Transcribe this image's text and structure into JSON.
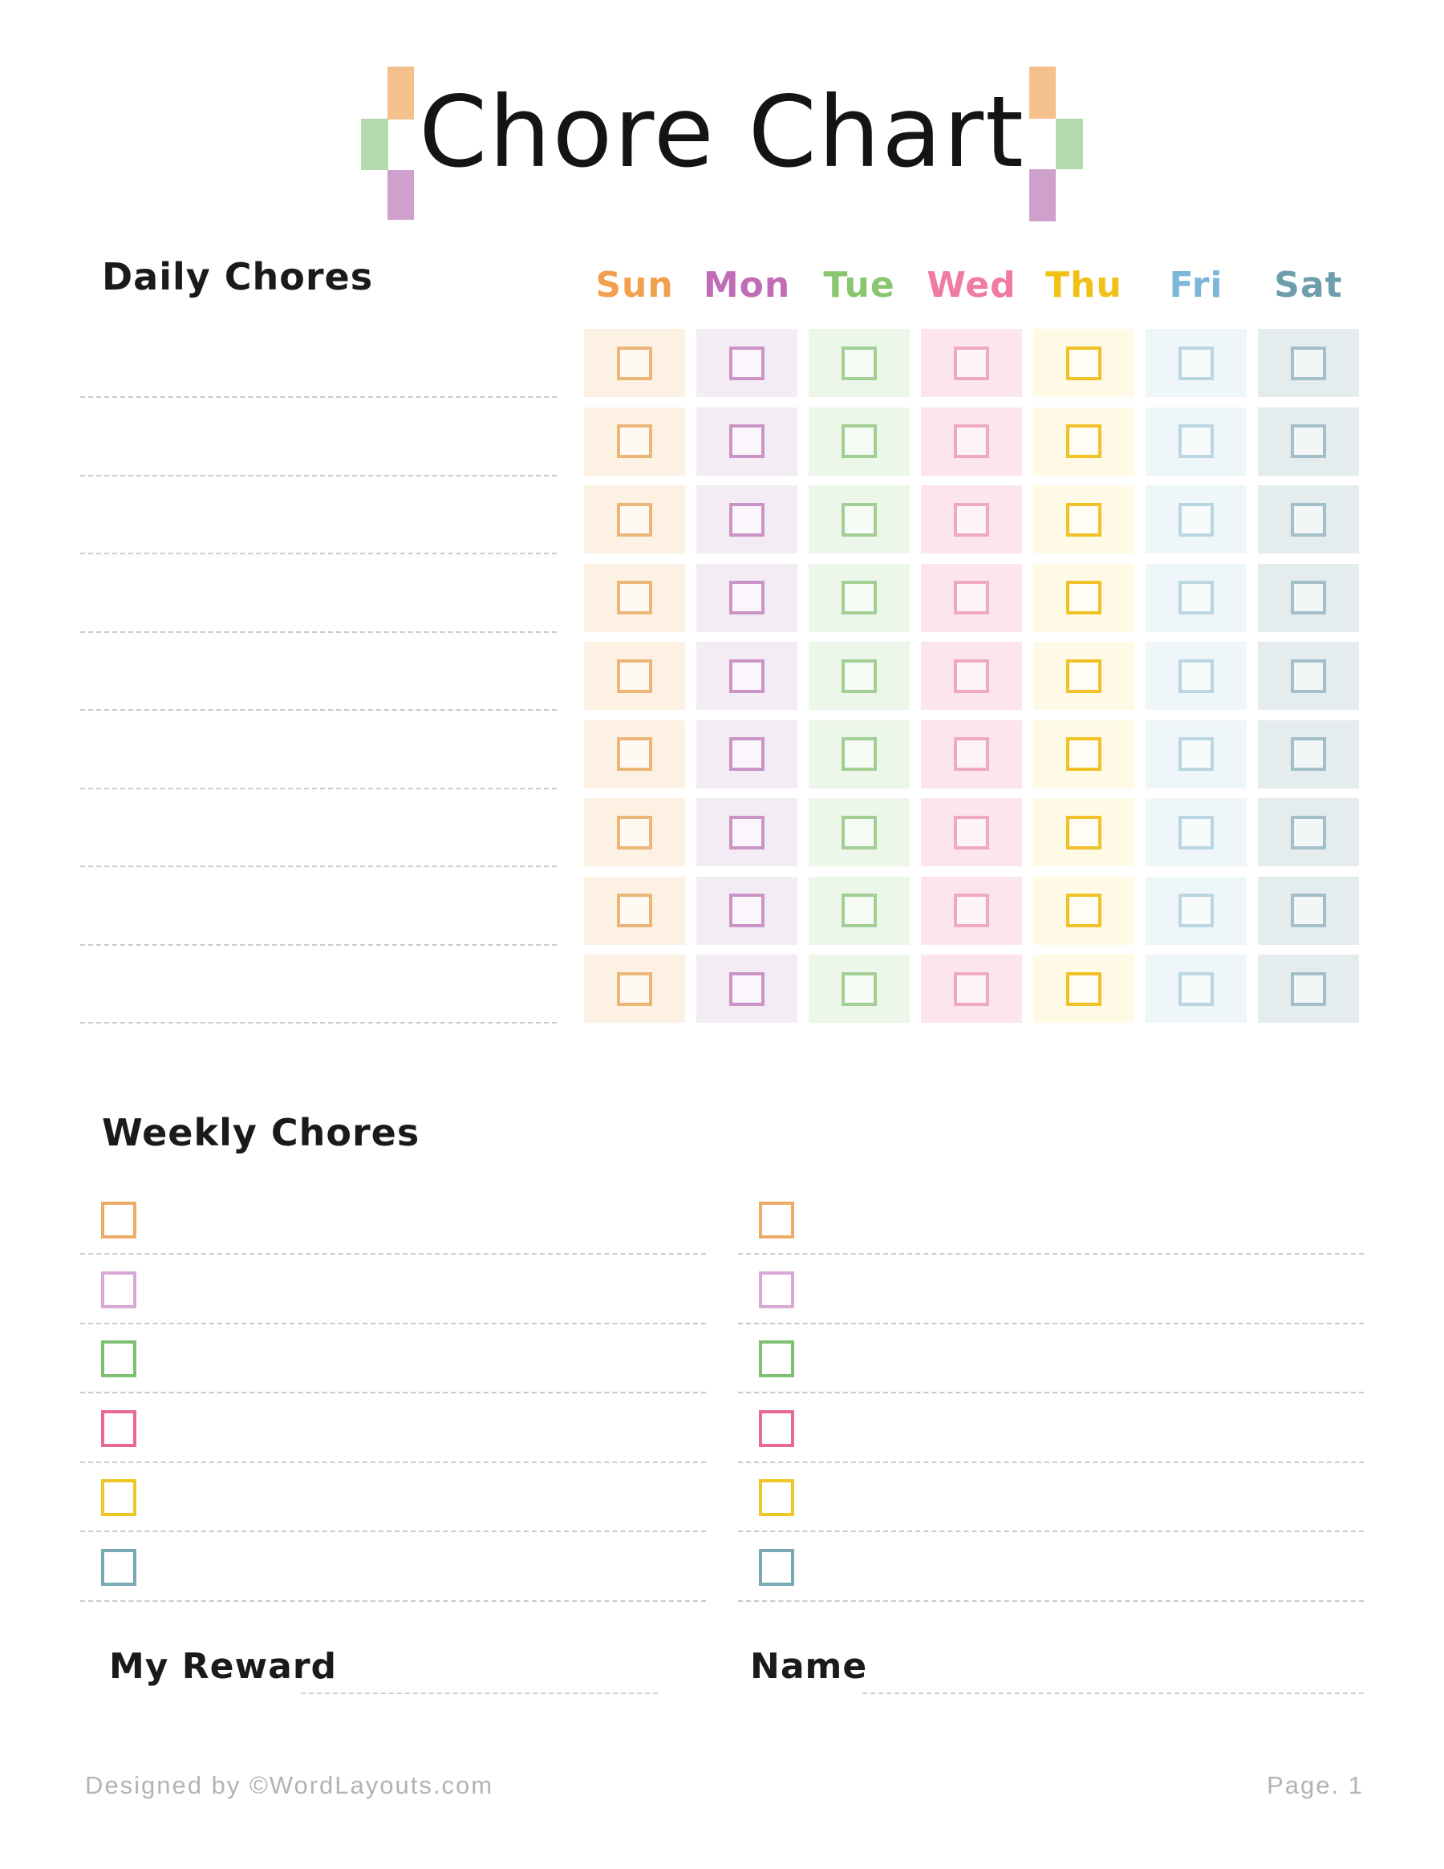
{
  "title": {
    "text": "Chore Chart"
  },
  "decoration": {
    "orange": "#f4c08b",
    "green": "#b5d9ae",
    "purple": "#cfa0cb"
  },
  "daily": {
    "heading": "Daily Chores",
    "num_rows": 9,
    "days": [
      {
        "label": "Sun",
        "text_color": "#f2a050",
        "tile_bg": "#fdf1e3",
        "box_color": "#eab778"
      },
      {
        "label": "Mon",
        "text_color": "#c06cb6",
        "tile_bg": "#f4ecf5",
        "box_color": "#cb94c6"
      },
      {
        "label": "Tue",
        "text_color": "#8ac66f",
        "tile_bg": "#ecf6e9",
        "box_color": "#a2cf94"
      },
      {
        "label": "Wed",
        "text_color": "#ef7aa2",
        "tile_bg": "#fce5ed",
        "box_color": "#efa9c0"
      },
      {
        "label": "Thu",
        "text_color": "#f2c117",
        "tile_bg": "#fefae6",
        "box_color": "#f0c227"
      },
      {
        "label": "Fri",
        "text_color": "#7cb6d8",
        "tile_bg": "#eff6f9",
        "box_color": "#b9d6e2"
      },
      {
        "label": "Sat",
        "text_color": "#6e9dac",
        "tile_bg": "#e5ecee",
        "box_color": "#a3bfc9"
      }
    ]
  },
  "weekly": {
    "heading": "Weekly Chores",
    "columns": 2,
    "items_per_column": 6,
    "box_colors": [
      "#ecab67",
      "#d9a8d4",
      "#7fbf72",
      "#e86a93",
      "#eec727",
      "#79a9b4"
    ]
  },
  "fields": {
    "reward_label": "My Reward",
    "name_label": "Name"
  },
  "footer": {
    "left": "Designed by ©WordLayouts.com",
    "right": "Page. 1"
  }
}
